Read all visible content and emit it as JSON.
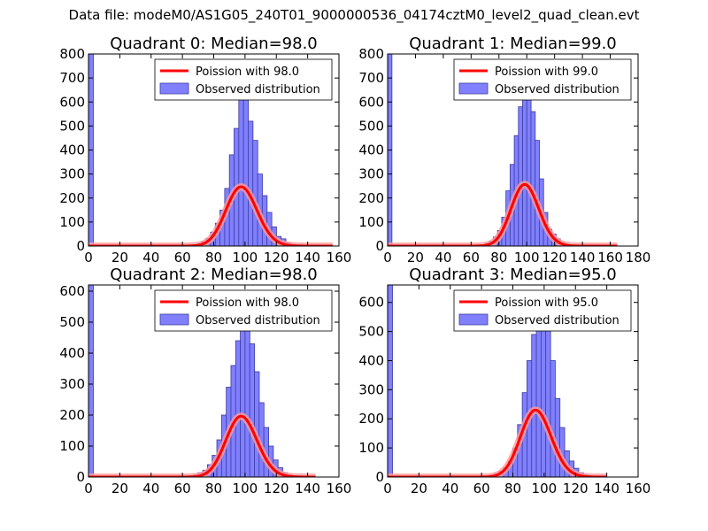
{
  "figure": {
    "suptitle": "Data file: modeM0/AS1G05_240T01_9000000536_04174cztM0_level2_quad_clean.evt"
  },
  "colors": {
    "bar_fill": "#8080ff",
    "bar_edge": "#3a3aa0",
    "poisson_line": "#ff0000",
    "poisson_glow": "#ff9a9a"
  },
  "chart_data": [
    {
      "type": "bar",
      "title": "Quadrant 0: Median=98.0",
      "xlim": [
        0,
        160
      ],
      "ylim": [
        0,
        800
      ],
      "xticks": [
        0,
        20,
        40,
        60,
        80,
        100,
        120,
        140,
        160
      ],
      "yticks": [
        0,
        100,
        200,
        300,
        400,
        500,
        600,
        700,
        800
      ],
      "legend": [
        "Poission with 98.0",
        "Observed distribution"
      ],
      "median": 98.0,
      "line_end": 156,
      "line_scale": 6120,
      "bin_width": 3.1,
      "bins": [
        [
          0,
          800
        ],
        [
          63,
          3
        ],
        [
          66,
          6
        ],
        [
          69,
          10
        ],
        [
          72,
          18
        ],
        [
          75,
          32
        ],
        [
          78,
          58
        ],
        [
          81,
          95
        ],
        [
          84,
          150
        ],
        [
          87,
          240
        ],
        [
          90,
          380
        ],
        [
          93,
          490
        ],
        [
          96,
          760
        ],
        [
          99,
          620
        ],
        [
          102,
          520
        ],
        [
          105,
          440
        ],
        [
          108,
          300
        ],
        [
          111,
          210
        ],
        [
          114,
          140
        ],
        [
          117,
          80
        ],
        [
          120,
          40
        ],
        [
          123,
          30
        ],
        [
          126,
          14
        ],
        [
          129,
          8
        ],
        [
          132,
          4
        ]
      ]
    },
    {
      "type": "bar",
      "title": "Quadrant 1: Median=99.0",
      "xlim": [
        0,
        180
      ],
      "ylim": [
        0,
        800
      ],
      "xticks": [
        0,
        20,
        40,
        60,
        80,
        100,
        120,
        140,
        160,
        180
      ],
      "yticks": [
        0,
        100,
        200,
        300,
        400,
        500,
        600,
        700,
        800
      ],
      "legend": [
        "Poission with 99.0",
        "Observed distribution"
      ],
      "median": 99.0,
      "line_end": 165,
      "line_scale": 6400,
      "bin_width": 3.1,
      "bins": [
        [
          0,
          800
        ],
        [
          64,
          3
        ],
        [
          67,
          6
        ],
        [
          70,
          12
        ],
        [
          73,
          20
        ],
        [
          76,
          38
        ],
        [
          79,
          65
        ],
        [
          82,
          120
        ],
        [
          85,
          230
        ],
        [
          88,
          340
        ],
        [
          91,
          460
        ],
        [
          94,
          580
        ],
        [
          97,
          620
        ],
        [
          100,
          700
        ],
        [
          103,
          560
        ],
        [
          106,
          440
        ],
        [
          109,
          280
        ],
        [
          112,
          140
        ],
        [
          115,
          70
        ],
        [
          118,
          50
        ],
        [
          121,
          30
        ],
        [
          124,
          12
        ],
        [
          127,
          8
        ],
        [
          130,
          4
        ]
      ]
    },
    {
      "type": "bar",
      "title": "Quadrant 2: Median=98.0",
      "xlim": [
        0,
        160
      ],
      "ylim": [
        0,
        620
      ],
      "xticks": [
        0,
        20,
        40,
        60,
        80,
        100,
        120,
        140,
        160
      ],
      "yticks": [
        0,
        100,
        200,
        300,
        400,
        500,
        600
      ],
      "legend": [
        "Poission with 98.0",
        "Observed distribution"
      ],
      "median": 98.0,
      "line_end": 145,
      "line_scale": 4870,
      "bin_width": 3.1,
      "bins": [
        [
          0,
          620
        ],
        [
          64,
          4
        ],
        [
          67,
          8
        ],
        [
          70,
          14
        ],
        [
          73,
          22
        ],
        [
          76,
          40
        ],
        [
          79,
          70
        ],
        [
          82,
          120
        ],
        [
          85,
          200
        ],
        [
          88,
          290
        ],
        [
          91,
          360
        ],
        [
          94,
          440
        ],
        [
          97,
          520
        ],
        [
          100,
          510
        ],
        [
          103,
          430
        ],
        [
          106,
          340
        ],
        [
          109,
          240
        ],
        [
          112,
          160
        ],
        [
          115,
          100
        ],
        [
          118,
          55
        ],
        [
          121,
          30
        ],
        [
          124,
          14
        ],
        [
          127,
          8
        ],
        [
          130,
          4
        ]
      ]
    },
    {
      "type": "bar",
      "title": "Quadrant 3: Median=95.0",
      "xlim": [
        0,
        160
      ],
      "ylim": [
        0,
        660
      ],
      "xticks": [
        0,
        20,
        40,
        60,
        80,
        100,
        120,
        140,
        160
      ],
      "yticks": [
        0,
        100,
        200,
        300,
        400,
        500,
        600
      ],
      "legend": [
        "Poission with 95.0",
        "Observed distribution"
      ],
      "median": 95.0,
      "line_end": 140,
      "line_scale": 5620,
      "bin_width": 3.1,
      "bins": [
        [
          0,
          660
        ],
        [
          62,
          3
        ],
        [
          65,
          6
        ],
        [
          68,
          12
        ],
        [
          71,
          20
        ],
        [
          74,
          32
        ],
        [
          77,
          55
        ],
        [
          80,
          100
        ],
        [
          83,
          180
        ],
        [
          86,
          290
        ],
        [
          89,
          400
        ],
        [
          92,
          490
        ],
        [
          95,
          630
        ],
        [
          98,
          580
        ],
        [
          101,
          520
        ],
        [
          104,
          400
        ],
        [
          107,
          270
        ],
        [
          110,
          170
        ],
        [
          113,
          90
        ],
        [
          116,
          55
        ],
        [
          119,
          30
        ],
        [
          122,
          15
        ],
        [
          125,
          8
        ]
      ]
    }
  ]
}
